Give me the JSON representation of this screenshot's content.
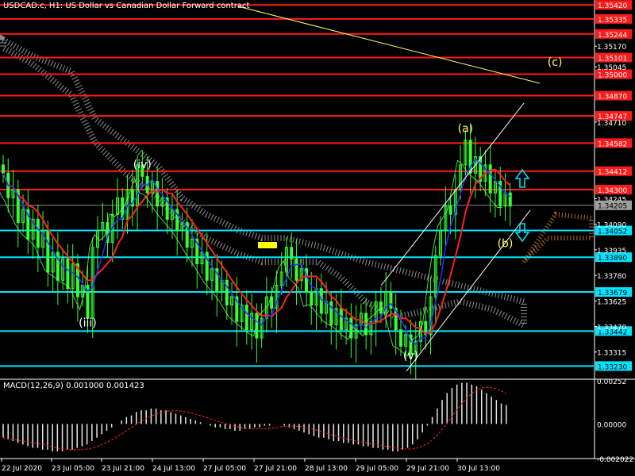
{
  "header": {
    "title": "USDCAD.c, H1:  US Dollar vs Canadian Dollar Forward contract",
    "macd_label": "MACD(12,26,9) 0.001000 0.001423"
  },
  "colors": {
    "background": "#000000",
    "red_level": "#ff1a1a",
    "cyan_level": "#00e5ff",
    "candle": "#33ff33",
    "channel": "#ffffff",
    "trendline": "#ffff66",
    "ma_red": "#ff2020",
    "ma_blue": "#2030ff",
    "cloud": "#ffffff",
    "wave_label": "#ffff66",
    "arrow": "#00e5ff"
  },
  "chart_data": [
    {
      "type": "candlestick",
      "title": "USDCAD.c, H1",
      "ylim": [
        1.3315,
        1.3545
      ],
      "y_ticks": [
        "1.35170",
        "1.35045",
        "1.34710",
        "1.34245",
        "1.34090",
        "1.33935",
        "1.33780",
        "1.33625",
        "1.33470",
        "1.33315"
      ],
      "x_ticks": [
        "22 Jul 2020",
        "23 Jul 05:00",
        "23 Jul 21:00",
        "24 Jul 13:00",
        "27 Jul 05:00",
        "27 Jul 21:00",
        "28 Jul 13:00",
        "29 Jul 05:00",
        "29 Jul 21:00",
        "30 Jul 13:00"
      ],
      "current_price": "1.34205",
      "resistance_levels": [
        {
          "value": 1.3542,
          "label": "1.35420"
        },
        {
          "value": 1.35335,
          "label": "1.35335"
        },
        {
          "value": 1.35244,
          "label": "1.35244"
        },
        {
          "value": 1.35101,
          "label": "1.35101"
        },
        {
          "value": 1.35,
          "label": "1.35000"
        },
        {
          "value": 1.3487,
          "label": "1.34870"
        },
        {
          "value": 1.34747,
          "label": "1.34747"
        },
        {
          "value": 1.34582,
          "label": "1.34582"
        },
        {
          "value": 1.34412,
          "label": "1.34412"
        },
        {
          "value": 1.343,
          "label": "1.34300"
        }
      ],
      "support_levels": [
        {
          "value": 1.34052,
          "label": "1.34052"
        },
        {
          "value": 1.3389,
          "label": "1.33890"
        },
        {
          "value": 1.33679,
          "label": "1.33679"
        },
        {
          "value": 1.33442,
          "label": "1.33442"
        },
        {
          "value": 1.3323,
          "label": "1.33230"
        }
      ],
      "wave_labels": [
        {
          "text": "(iii)",
          "x_index": 17,
          "price": 1.3347
        },
        {
          "text": "(iv)",
          "x_index": 28,
          "price": 1.3443
        },
        {
          "text": "(v)",
          "x_index": 82,
          "price": 1.3327
        },
        {
          "text": "(a)",
          "x_index": 93,
          "price": 1.3465
        },
        {
          "text": "(b)",
          "x_index": 101,
          "price": 1.3395
        },
        {
          "text": "(c)",
          "x_index": 111,
          "price": 1.3505
        }
      ],
      "wave_labels_color": "#ffff66",
      "closes": [
        1.344,
        1.3425,
        1.343,
        1.341,
        1.3418,
        1.34,
        1.3412,
        1.3395,
        1.3405,
        1.338,
        1.3392,
        1.3375,
        1.3388,
        1.337,
        1.3385,
        1.3365,
        1.3372,
        1.3352,
        1.3395,
        1.3405,
        1.341,
        1.3398,
        1.3415,
        1.3425,
        1.3412,
        1.343,
        1.342,
        1.3445,
        1.3438,
        1.3428,
        1.3435,
        1.342,
        1.3425,
        1.3412,
        1.3418,
        1.3405,
        1.341,
        1.3395,
        1.34,
        1.3385,
        1.3392,
        1.3375,
        1.3382,
        1.3368,
        1.3375,
        1.336,
        1.3365,
        1.335,
        1.336,
        1.3345,
        1.3355,
        1.334,
        1.3352,
        1.3365,
        1.3358,
        1.3372,
        1.338,
        1.3395,
        1.3388,
        1.3375,
        1.3382,
        1.3368,
        1.336,
        1.337,
        1.3355,
        1.3362,
        1.3348,
        1.3358,
        1.3345,
        1.3352,
        1.334,
        1.3348,
        1.3355,
        1.3342,
        1.335,
        1.3362,
        1.3355,
        1.3368,
        1.3358,
        1.3345,
        1.3335,
        1.3342,
        1.333,
        1.3338,
        1.335,
        1.3342,
        1.3365,
        1.339,
        1.3405,
        1.342,
        1.3415,
        1.343,
        1.3445,
        1.346,
        1.344,
        1.345,
        1.3435,
        1.3445,
        1.3428,
        1.3435,
        1.342,
        1.3428,
        1.342
      ]
    },
    {
      "type": "bar",
      "title": "MACD(12,26,9)",
      "ylim": [
        -0.00202,
        0.00252
      ],
      "y_ticks": [
        "0.00252",
        "0.00000",
        "-0.002022"
      ],
      "main": [
        -0.0008,
        -0.0009,
        -0.001,
        -0.0011,
        -0.0012,
        -0.0013,
        -0.0014,
        -0.0014,
        -0.0015,
        -0.0015,
        -0.0016,
        -0.0016,
        -0.0016,
        -0.0015,
        -0.0015,
        -0.0014,
        -0.0013,
        -0.0012,
        -0.001,
        -0.0008,
        -0.0006,
        -0.0004,
        -0.0002,
        0.0,
        0.0002,
        0.0004,
        0.0005,
        0.0007,
        0.0008,
        0.0008,
        0.0009,
        0.0009,
        0.0008,
        0.0008,
        0.0007,
        0.0006,
        0.0005,
        0.0004,
        0.0003,
        0.0002,
        0.0001,
        0.0,
        -0.0001,
        -0.0002,
        -0.0002,
        -0.0003,
        -0.0003,
        -0.0004,
        -0.0004,
        -0.0003,
        -0.0003,
        -0.0002,
        -0.0002,
        -0.0001,
        -0.0001,
        0.0,
        0.0,
        -0.0001,
        -0.0002,
        -0.0003,
        -0.0004,
        -0.0005,
        -0.0006,
        -0.0007,
        -0.0008,
        -0.0008,
        -0.0009,
        -0.001,
        -0.001,
        -0.0011,
        -0.0011,
        -0.0012,
        -0.0012,
        -0.0013,
        -0.0013,
        -0.0014,
        -0.0014,
        -0.0015,
        -0.0015,
        -0.0016,
        -0.0016,
        -0.0015,
        -0.0014,
        -0.0012,
        -0.0009,
        -0.0005,
        -0.0001,
        0.0004,
        0.0009,
        0.0014,
        0.0018,
        0.0021,
        0.0023,
        0.0024,
        0.0024,
        0.0023,
        0.0022,
        0.002,
        0.0018,
        0.0016,
        0.0014,
        0.0012,
        0.0011
      ],
      "signal_color": "#ff2020",
      "bar_color": "#ffffff"
    }
  ]
}
